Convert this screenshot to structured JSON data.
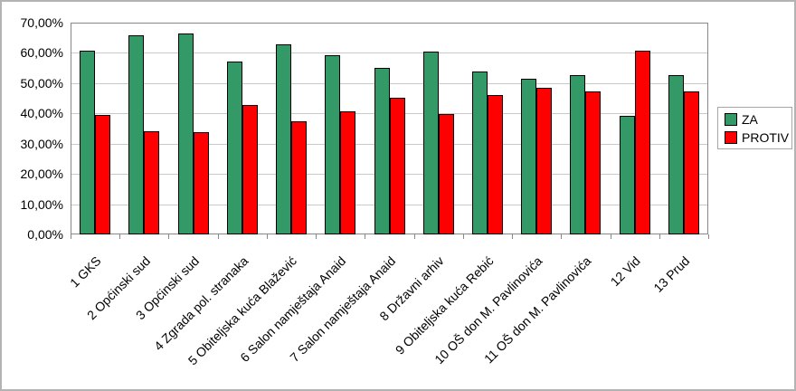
{
  "chart_data": {
    "type": "bar",
    "title": "",
    "xlabel": "",
    "ylabel": "",
    "categories": [
      "1 GKS",
      "2 Općinski sud",
      "3 Općinski sud",
      "4 Zgrada pol. stranaka",
      "5 Obiteljska kuća Blažević",
      "6 Salon namještaja Anaid",
      "7 Salon namještaja Anaid",
      "8 Državni arhiv",
      "9 Obiteljska kuća Rebić",
      "10 OŠ don M. Pavlinovića",
      "11 OŠ don M. Pavlinovića",
      "12 Vid",
      "13 Prud"
    ],
    "series": [
      {
        "name": "ZA",
        "color": "#339966",
        "values": [
          60.8,
          65.9,
          66.3,
          57.1,
          62.9,
          59.3,
          55.0,
          60.4,
          53.8,
          51.4,
          52.6,
          39.3,
          52.7
        ]
      },
      {
        "name": "PROTIV",
        "color": "#FF0000",
        "values": [
          39.4,
          34.1,
          33.8,
          42.9,
          37.3,
          40.7,
          45.1,
          39.8,
          46.2,
          48.6,
          47.4,
          60.7,
          47.2
        ]
      }
    ],
    "ylim": [
      0,
      70
    ],
    "ytick_step": 10,
    "ytick_labels": [
      "0,00%",
      "10,00%",
      "20,00%",
      "30,00%",
      "40,00%",
      "50,00%",
      "60,00%",
      "70,00%"
    ],
    "grid": true,
    "legend_position": "right"
  }
}
